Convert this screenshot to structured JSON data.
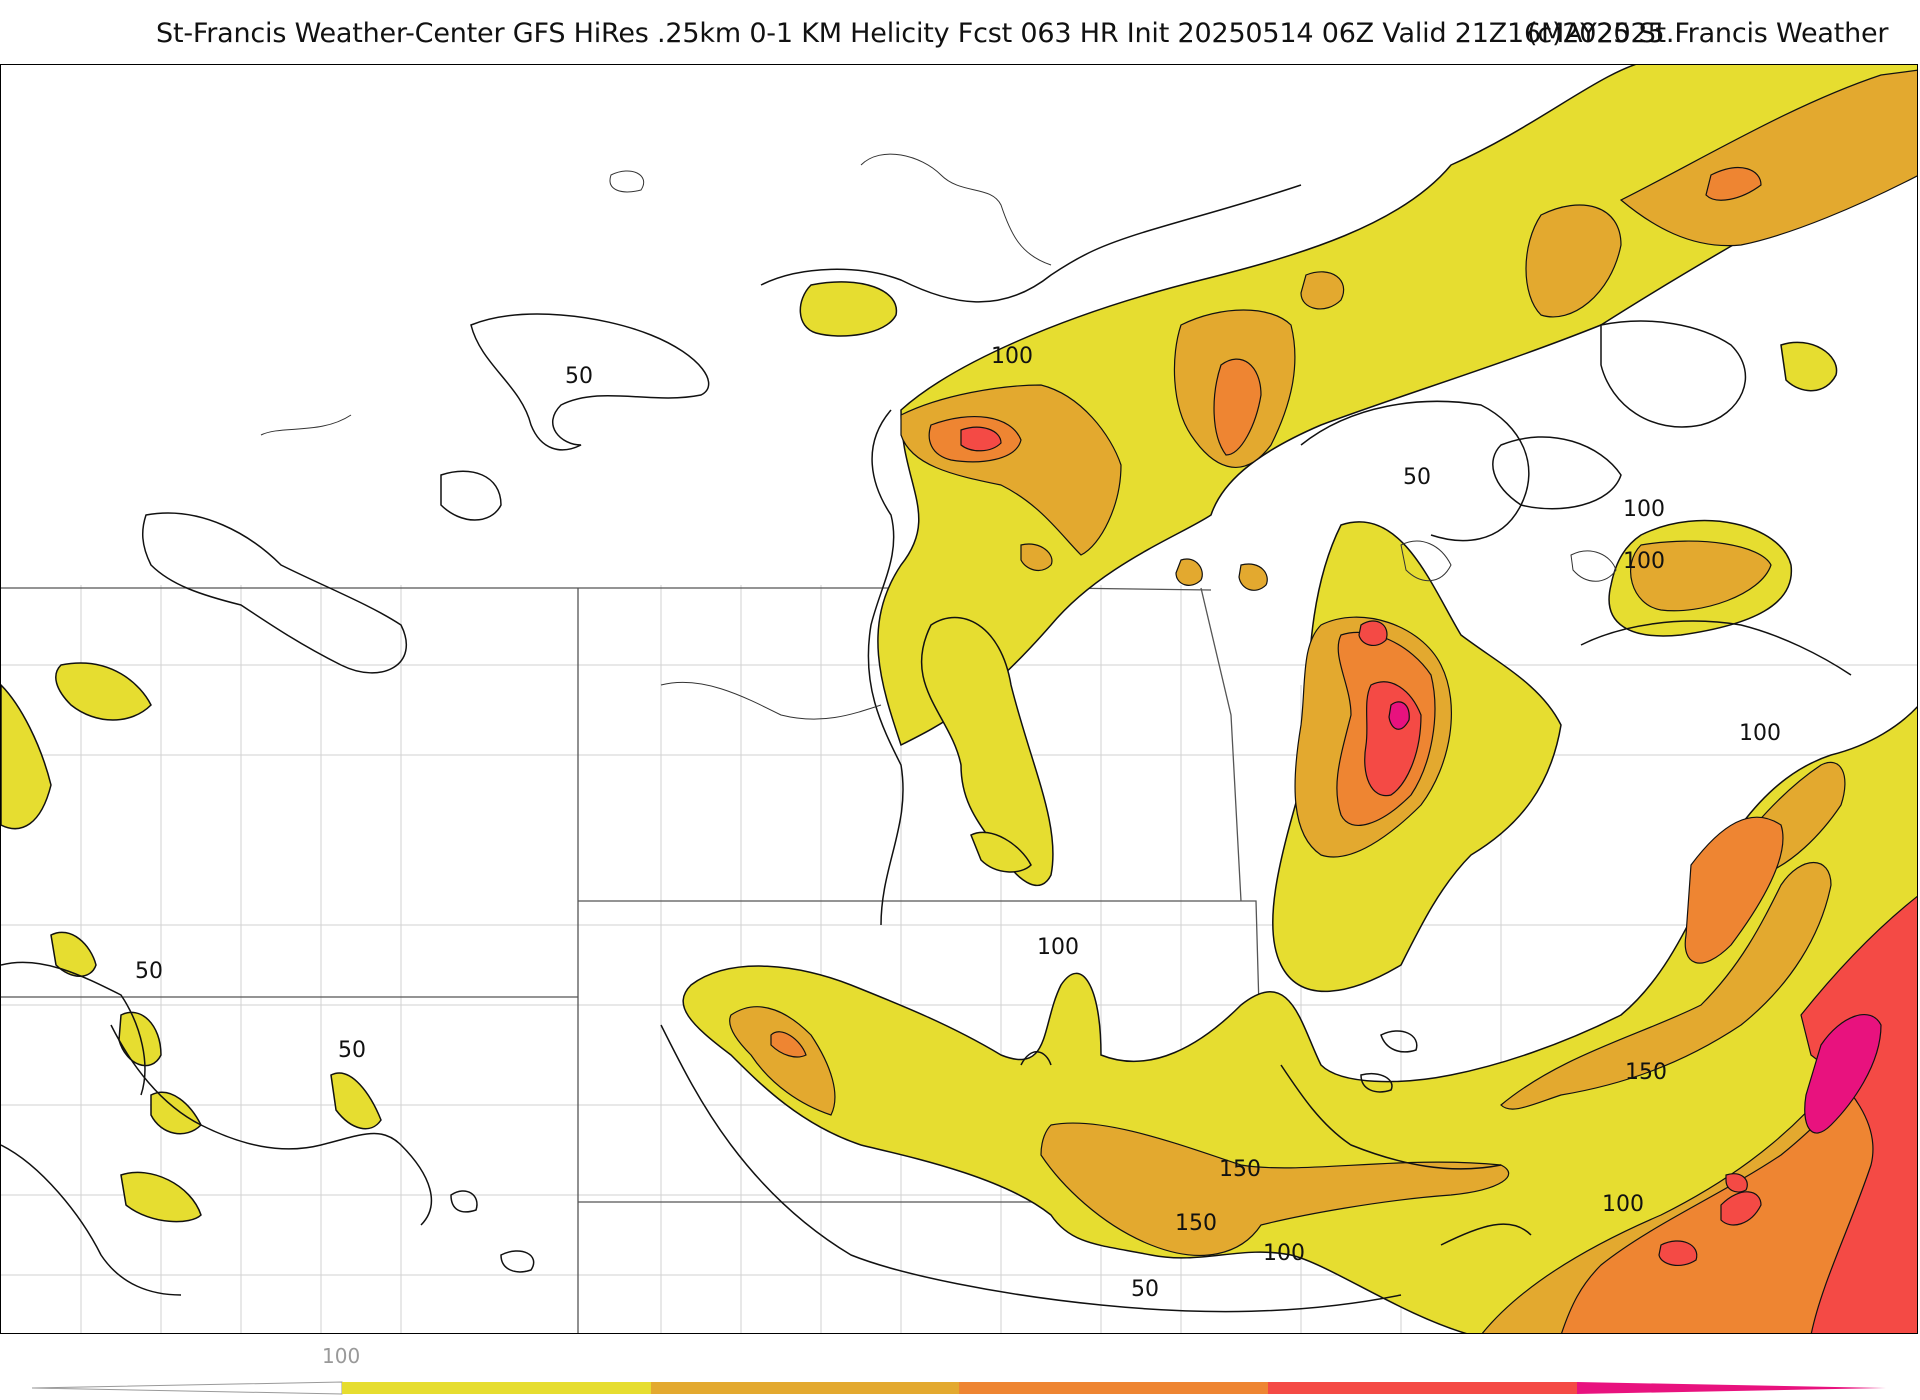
{
  "header": {
    "title": "St-Francis Weather-Center GFS HiRes .25km 0-1 KM Helicity Fcst 063 HR Init 20250514 06Z  Valid 21Z16MAY2025",
    "copyright": "(c)2025 St.Francis Weather"
  },
  "map": {
    "contour_labels": [
      "50",
      "100",
      "150"
    ],
    "fill_colors": {
      "100": "#e6dd30",
      "150": "#e3a92f",
      "200": "#ee8532",
      "250": "#f44a45",
      "300": "#e8127e"
    },
    "line_color": "#111111",
    "border_color": "#cccccc"
  },
  "legend": {
    "tick_label": "100",
    "colors": [
      "#e6dd30",
      "#e3a92f",
      "#ee8532",
      "#f44a45",
      "#e8127e"
    ]
  }
}
